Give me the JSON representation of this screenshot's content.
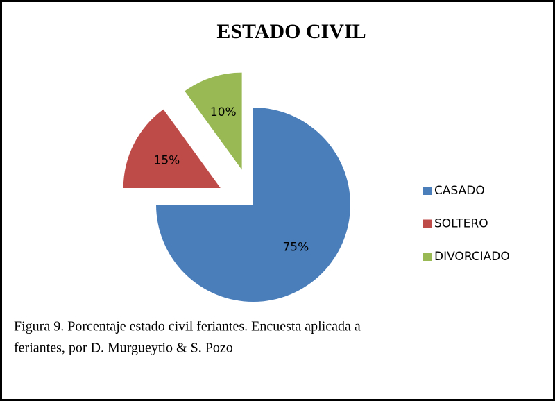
{
  "chart_data": {
    "type": "pie",
    "title": "ESTADO CIVIL",
    "categories": [
      "CASADO",
      "SOLTERO",
      "DIVORCIADO"
    ],
    "values": [
      75,
      15,
      10
    ],
    "value_labels": [
      "75%",
      "15%",
      "10%"
    ],
    "colors": [
      "#4a7ebb",
      "#be4b48",
      "#98b954"
    ],
    "legend": "right"
  },
  "caption": [
    "Figura 9. Porcentaje estado civil feriantes. Encuesta aplicada a",
    "feriantes, por D. Murgueytio & S. Pozo"
  ]
}
